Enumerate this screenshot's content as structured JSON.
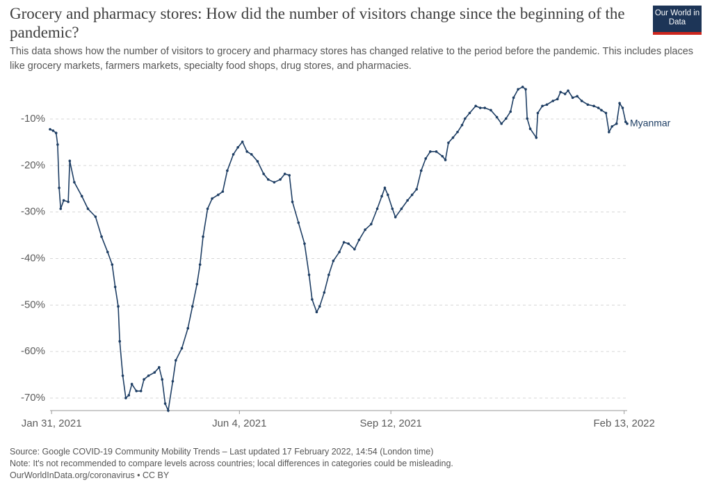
{
  "chart_data": {
    "type": "line",
    "title": "Grocery and pharmacy stores: How did the number of visitors change since the beginning of the pandemic?",
    "subtitle": "This data shows how the number of visitors to grocery and pharmacy stores has changed relative to the period before the pandemic. This includes places like grocery markets, farmers markets, specialty food shops, drug stores, and pharmacies.",
    "logo": "Our World in Data",
    "source": "Source: Google COVID-19 Community Mobility Trends – Last updated 17 February 2022, 14:54 (London time)",
    "note": "Note: It's not recommended to compare levels across countries; local differences in categories could be misleading.",
    "license": "OurWorldInData.org/coronavirus • CC BY",
    "x": [
      "2021-01-30",
      "2021-02-01",
      "2021-02-03",
      "2021-02-04",
      "2021-02-05",
      "2021-02-06",
      "2021-02-08",
      "2021-02-11",
      "2021-02-12",
      "2021-02-15",
      "2021-02-20",
      "2021-02-24",
      "2021-03-01",
      "2021-03-05",
      "2021-03-09",
      "2021-03-12",
      "2021-03-14",
      "2021-03-16",
      "2021-03-17",
      "2021-03-19",
      "2021-03-21",
      "2021-03-23",
      "2021-03-25",
      "2021-03-28",
      "2021-03-31",
      "2021-04-02",
      "2021-04-05",
      "2021-04-09",
      "2021-04-12",
      "2021-04-14",
      "2021-04-16",
      "2021-04-18",
      "2021-04-21",
      "2021-04-23",
      "2021-04-27",
      "2021-05-01",
      "2021-05-04",
      "2021-05-07",
      "2021-05-09",
      "2021-05-11",
      "2021-05-14",
      "2021-05-17",
      "2021-05-21",
      "2021-05-24",
      "2021-05-27",
      "2021-05-31",
      "2021-06-03",
      "2021-06-06",
      "2021-06-09",
      "2021-06-12",
      "2021-06-16",
      "2021-06-20",
      "2021-06-23",
      "2021-06-27",
      "2021-07-01",
      "2021-07-04",
      "2021-07-07",
      "2021-07-09",
      "2021-07-13",
      "2021-07-17",
      "2021-07-20",
      "2021-07-22",
      "2021-07-25",
      "2021-07-27",
      "2021-07-30",
      "2021-08-02",
      "2021-08-05",
      "2021-08-09",
      "2021-08-12",
      "2021-08-15",
      "2021-08-19",
      "2021-08-22",
      "2021-08-26",
      "2021-08-30",
      "2021-09-03",
      "2021-09-06",
      "2021-09-08",
      "2021-09-10",
      "2021-09-13",
      "2021-09-15",
      "2021-09-19",
      "2021-09-23",
      "2021-09-26",
      "2021-09-29",
      "2021-10-02",
      "2021-10-05",
      "2021-10-08",
      "2021-10-12",
      "2021-10-16",
      "2021-10-18",
      "2021-10-20",
      "2021-10-23",
      "2021-10-26",
      "2021-10-29",
      "2021-10-31",
      "2021-11-03",
      "2021-11-07",
      "2021-11-10",
      "2021-11-13",
      "2021-11-17",
      "2021-11-21",
      "2021-11-24",
      "2021-11-27",
      "2021-11-30",
      "2021-12-02",
      "2021-12-05",
      "2021-12-08",
      "2021-12-10",
      "2021-12-11",
      "2021-12-13",
      "2021-12-17",
      "2021-12-18",
      "2021-12-21",
      "2021-12-24",
      "2021-12-28",
      "2021-12-31",
      "2022-01-02",
      "2022-01-05",
      "2022-01-07",
      "2022-01-10",
      "2022-01-13",
      "2022-01-16",
      "2022-01-20",
      "2022-01-24",
      "2022-01-27",
      "2022-01-29",
      "2022-02-01",
      "2022-02-03",
      "2022-02-05",
      "2022-02-08",
      "2022-02-10",
      "2022-02-12",
      "2022-02-14",
      "2022-02-15"
    ],
    "series": [
      {
        "name": "Myanmar",
        "color": "#1d3d63",
        "values": [
          -12.2,
          -12.5,
          -13,
          -15.5,
          -24.8,
          -29.3,
          -27.5,
          -27.8,
          -19,
          -23.6,
          -26.6,
          -29.3,
          -31,
          -35.3,
          -38.6,
          -41.3,
          -46.1,
          -50.3,
          -57.8,
          -65.2,
          -70,
          -69.4,
          -67,
          -68.5,
          -68.5,
          -66,
          -65.2,
          -64.5,
          -63.4,
          -66,
          -71.2,
          -72.7,
          -66.4,
          -61.9,
          -59.3,
          -55,
          -50.3,
          -45.5,
          -41.3,
          -35.3,
          -29.3,
          -27.1,
          -26.3,
          -25.6,
          -21.1,
          -17.6,
          -16.1,
          -14.9,
          -17,
          -17.6,
          -19.1,
          -21.8,
          -23,
          -23.6,
          -23,
          -21.8,
          -22.1,
          -27.8,
          -32.3,
          -36.8,
          -43.5,
          -48.8,
          -51.5,
          -50.3,
          -47.3,
          -43.5,
          -40.5,
          -38.6,
          -36.5,
          -36.8,
          -38,
          -36,
          -33.8,
          -32.6,
          -29.3,
          -26.6,
          -24.8,
          -26.3,
          -29.3,
          -31.1,
          -29.3,
          -27.5,
          -26.3,
          -25.1,
          -21.1,
          -18.5,
          -17,
          -17,
          -18,
          -18.8,
          -15.1,
          -14,
          -12.8,
          -11.3,
          -9.9,
          -8.7,
          -7.2,
          -7.6,
          -7.6,
          -8.1,
          -9.6,
          -11,
          -9.9,
          -8.4,
          -5.4,
          -3.6,
          -3.1,
          -3.6,
          -9.9,
          -12.1,
          -14,
          -8.7,
          -7.2,
          -6.9,
          -6.1,
          -5.7,
          -4.2,
          -4.6,
          -3.9,
          -5.4,
          -5.1,
          -6.1,
          -6.9,
          -7.2,
          -7.6,
          -8.1,
          -8.7,
          -12.8,
          -11.6,
          -11,
          -6.6,
          -7.6,
          -10.6,
          -11
        ]
      }
    ],
    "xlim": [
      "2021-01-30",
      "2022-02-15"
    ],
    "xticks": [
      {
        "value": "2021-01-31",
        "label": "Jan 31, 2021"
      },
      {
        "value": "2021-06-04",
        "label": "Jun 4, 2021"
      },
      {
        "value": "2021-09-12",
        "label": "Sep 12, 2021"
      },
      {
        "value": "2022-02-13",
        "label": "Feb 13, 2022"
      }
    ],
    "ylim": [
      -73,
      -2
    ],
    "yticks": [
      {
        "value": -70,
        "label": "-70%"
      },
      {
        "value": -60,
        "label": "-60%"
      },
      {
        "value": -50,
        "label": "-50%"
      },
      {
        "value": -40,
        "label": "-40%"
      },
      {
        "value": -30,
        "label": "-30%"
      },
      {
        "value": -20,
        "label": "-20%"
      },
      {
        "value": -10,
        "label": "-10%"
      }
    ],
    "grid": true
  }
}
